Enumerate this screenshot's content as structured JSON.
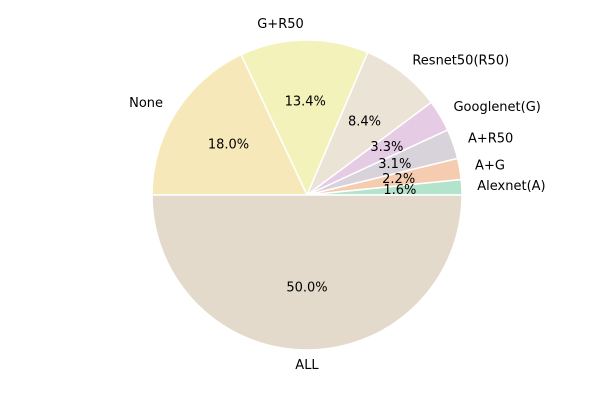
{
  "chart_data": {
    "type": "pie",
    "title": "",
    "start_angle_deg": 0,
    "direction": "counterclockwise",
    "legend": "none",
    "slices": [
      {
        "label": "Alexnet(A)",
        "value": 1.6,
        "display": "1.6%",
        "color": "#b4e3cc"
      },
      {
        "label": "A+G",
        "value": 2.2,
        "display": "2.2%",
        "color": "#f5ccaf"
      },
      {
        "label": "A+R50",
        "value": 3.1,
        "display": "3.1%",
        "color": "#d8d3db"
      },
      {
        "label": "Googlenet(G)",
        "value": 3.3,
        "display": "3.3%",
        "color": "#e6cbe5"
      },
      {
        "label": "Resnet50(R50)",
        "value": 8.4,
        "display": "8.4%",
        "color": "#ebe3d6"
      },
      {
        "label": "G+R50",
        "value": 13.4,
        "display": "13.4%",
        "color": "#f3f2bb"
      },
      {
        "label": "None",
        "value": 18.0,
        "display": "18.0%",
        "color": "#f7e8b9"
      },
      {
        "label": "ALL",
        "value": 50.0,
        "display": "50.0%",
        "color": "#e4dacb"
      }
    ]
  }
}
